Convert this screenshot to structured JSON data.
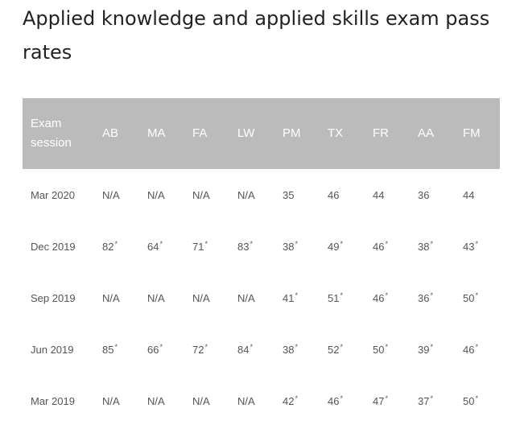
{
  "title": "Applied knowledge and applied skills exam pass rates",
  "table": {
    "session_header_line1": "Exam",
    "session_header_line2": "session",
    "columns": [
      "AB",
      "MA",
      "FA",
      "LW",
      "PM",
      "TX",
      "FR",
      "AA",
      "FM"
    ],
    "rows": [
      {
        "session": "Mar 2020",
        "cells": [
          {
            "v": "N/A",
            "f": ""
          },
          {
            "v": "N/A",
            "f": ""
          },
          {
            "v": "N/A",
            "f": ""
          },
          {
            "v": "N/A",
            "f": ""
          },
          {
            "v": "35",
            "f": ""
          },
          {
            "v": "46",
            "f": ""
          },
          {
            "v": "44",
            "f": ""
          },
          {
            "v": "36",
            "f": ""
          },
          {
            "v": "44",
            "f": ""
          }
        ]
      },
      {
        "session": "Dec 2019",
        "cells": [
          {
            "v": "82",
            "f": "*"
          },
          {
            "v": "64",
            "f": "*"
          },
          {
            "v": "71",
            "f": "*"
          },
          {
            "v": "83",
            "f": "*"
          },
          {
            "v": "38",
            "f": "*"
          },
          {
            "v": "49",
            "f": "*"
          },
          {
            "v": "46",
            "f": "*"
          },
          {
            "v": "38",
            "f": "*"
          },
          {
            "v": "43",
            "f": "*"
          }
        ]
      },
      {
        "session": "Sep 2019",
        "cells": [
          {
            "v": "N/A",
            "f": ""
          },
          {
            "v": "N/A",
            "f": ""
          },
          {
            "v": "N/A",
            "f": ""
          },
          {
            "v": "N/A",
            "f": ""
          },
          {
            "v": "41",
            "f": "*"
          },
          {
            "v": "51",
            "f": "*"
          },
          {
            "v": "46",
            "f": "*"
          },
          {
            "v": "36",
            "f": "*"
          },
          {
            "v": "50",
            "f": "*"
          }
        ]
      },
      {
        "session": "Jun 2019",
        "cells": [
          {
            "v": "85",
            "f": "*"
          },
          {
            "v": "66",
            "f": "*"
          },
          {
            "v": "72",
            "f": "*"
          },
          {
            "v": "84",
            "f": "*"
          },
          {
            "v": "38",
            "f": "*"
          },
          {
            "v": "52",
            "f": "*"
          },
          {
            "v": "50",
            "f": "*"
          },
          {
            "v": "39",
            "f": "*"
          },
          {
            "v": "46",
            "f": "*"
          }
        ]
      },
      {
        "session": "Mar 2019",
        "cells": [
          {
            "v": "N/A",
            "f": ""
          },
          {
            "v": "N/A",
            "f": ""
          },
          {
            "v": "N/A",
            "f": ""
          },
          {
            "v": "N/A",
            "f": ""
          },
          {
            "v": "42",
            "f": "*"
          },
          {
            "v": "46",
            "f": "*"
          },
          {
            "v": "47",
            "f": "*"
          },
          {
            "v": "37",
            "f": "*"
          },
          {
            "v": "50",
            "f": "*"
          }
        ]
      }
    ]
  },
  "colors": {
    "header_background": "#bbbbbb",
    "header_text": "#ffffff",
    "body_text": "#555555"
  }
}
